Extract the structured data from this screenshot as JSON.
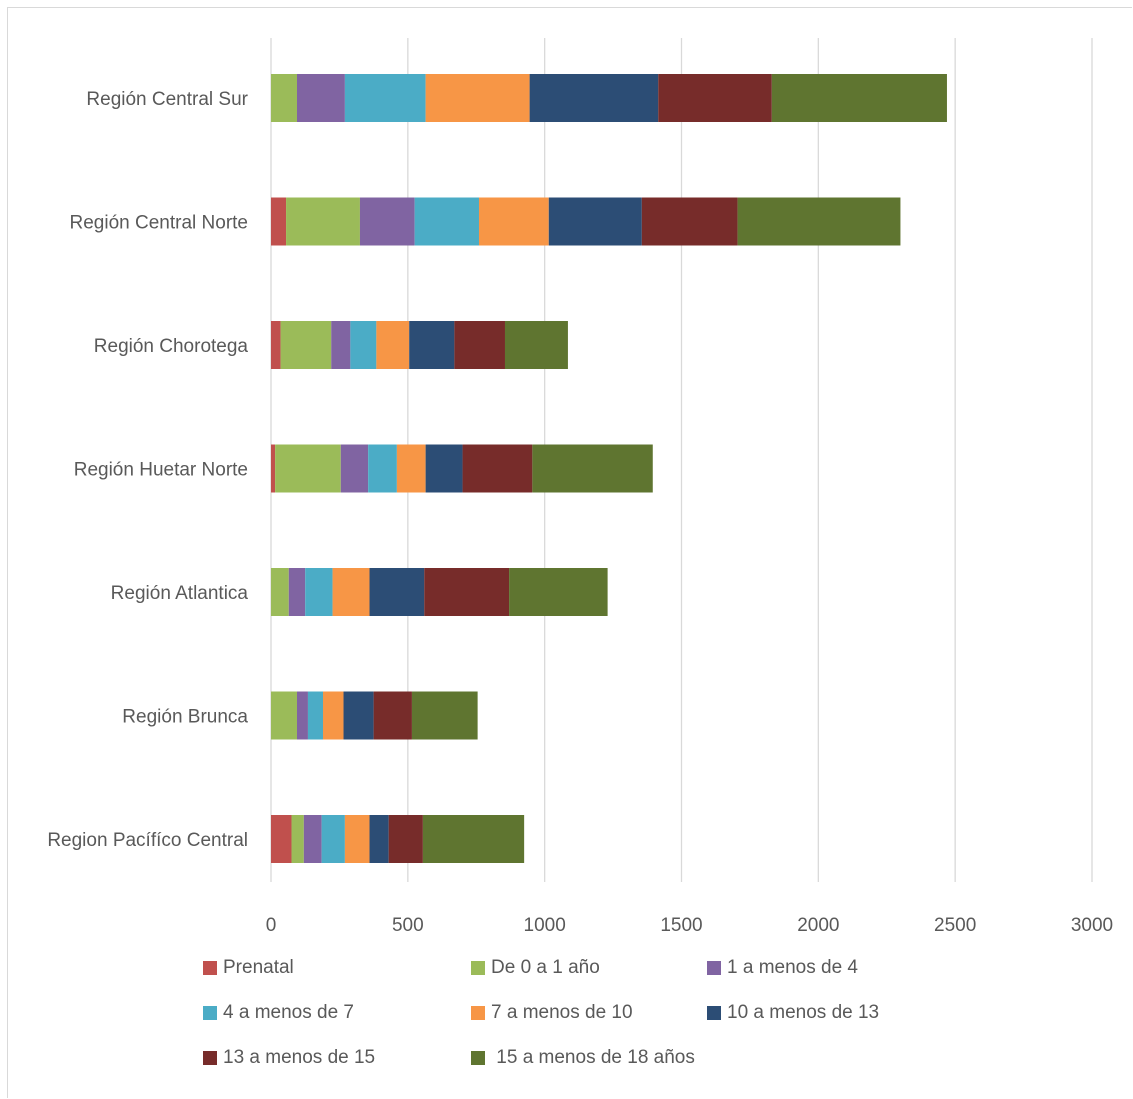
{
  "chart_data": {
    "type": "bar",
    "orientation": "horizontal",
    "stacked": true,
    "categories": [
      "Región Central Sur",
      "Región Central Norte",
      "Región Chorotega",
      "Región Huetar Norte",
      "Región Atlantica",
      "Región Brunca",
      "Region Pacífíco Central"
    ],
    "series": [
      {
        "name": "Prenatal",
        "color": "#c0504d",
        "values": [
          0,
          55,
          35,
          15,
          0,
          0,
          75
        ]
      },
      {
        "name": "De 0 a 1 año",
        "color": "#9bbb59",
        "values": [
          95,
          270,
          185,
          240,
          65,
          95,
          45
        ]
      },
      {
        "name": "1 a menos de 4",
        "color": "#8064a2",
        "values": [
          175,
          200,
          70,
          100,
          60,
          40,
          65
        ]
      },
      {
        "name": "4 a menos de 7",
        "color": "#4bacc6",
        "values": [
          295,
          235,
          95,
          105,
          100,
          55,
          85
        ]
      },
      {
        "name": "7 a menos de 10",
        "color": "#f79646",
        "values": [
          380,
          255,
          120,
          105,
          135,
          75,
          90
        ]
      },
      {
        "name": "10 a menos de 13",
        "color": "#2c4d75",
        "values": [
          470,
          340,
          165,
          135,
          200,
          110,
          70
        ]
      },
      {
        "name": "13 a menos de 15",
        "color": "#772c2a",
        "values": [
          415,
          350,
          185,
          255,
          310,
          140,
          125
        ]
      },
      {
        "name": " 15 a menos de 18 años",
        "color": "#5f7530",
        "values": [
          640,
          595,
          230,
          440,
          360,
          240,
          370
        ]
      }
    ],
    "xlim": [
      0,
      3000
    ],
    "xticks": [
      0,
      500,
      1000,
      1500,
      2000,
      2500,
      3000
    ],
    "grid": true,
    "legend_position": "bottom",
    "title": "",
    "xlabel": "",
    "ylabel": ""
  }
}
